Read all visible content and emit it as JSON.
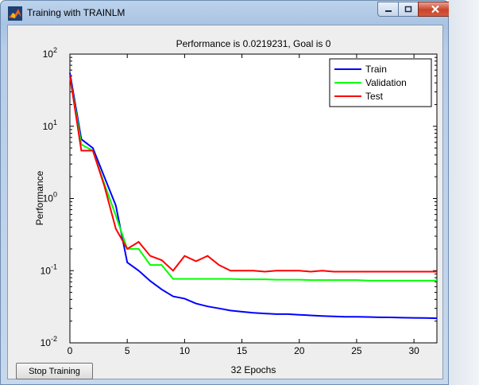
{
  "window": {
    "title": "Training with TRAINLM",
    "buttons": [
      "minimize",
      "maximize",
      "close"
    ],
    "icon": "matlab-icon"
  },
  "controls": {
    "stop_label": "Stop Training"
  },
  "colors": {
    "train": "#0000ff",
    "validation": "#00ff00",
    "test": "#ff0000"
  },
  "chart_data": {
    "type": "line",
    "title": "Performance is 0.0219231, Goal is 0",
    "xlabel": "32 Epochs",
    "ylabel": "Performance",
    "xlim": [
      0,
      32
    ],
    "ylim": [
      0.01,
      100
    ],
    "yscale": "log",
    "xticks": [
      0,
      5,
      10,
      15,
      20,
      25,
      30
    ],
    "yticks": [
      {
        "value": 0.01,
        "base": "10",
        "exp": "-2"
      },
      {
        "value": 0.1,
        "base": "10",
        "exp": "-1"
      },
      {
        "value": 1,
        "base": "10",
        "exp": "0"
      },
      {
        "value": 10,
        "base": "10",
        "exp": "1"
      },
      {
        "value": 100,
        "base": "10",
        "exp": "2"
      }
    ],
    "legend": "top-right",
    "grid": false,
    "series": [
      {
        "name": "Train",
        "color": "#0000ff",
        "x": [
          0,
          1,
          2,
          3,
          4,
          5,
          6,
          7,
          8,
          9,
          10,
          11,
          12,
          13,
          14,
          15,
          16,
          17,
          18,
          19,
          20,
          21,
          22,
          23,
          24,
          25,
          26,
          27,
          28,
          29,
          30,
          31,
          32
        ],
        "y": [
          55,
          6.6,
          5,
          2,
          0.8,
          0.13,
          0.1,
          0.072,
          0.055,
          0.044,
          0.041,
          0.035,
          0.032,
          0.03,
          0.028,
          0.027,
          0.026,
          0.0255,
          0.025,
          0.025,
          0.0245,
          0.024,
          0.0235,
          0.0232,
          0.023,
          0.023,
          0.0228,
          0.0226,
          0.0225,
          0.0223,
          0.0222,
          0.0221,
          0.0219
        ]
      },
      {
        "name": "Validation",
        "color": "#00ff00",
        "x": [
          0,
          1,
          2,
          3,
          4,
          5,
          6,
          7,
          8,
          9,
          10,
          11,
          12,
          13,
          14,
          15,
          16,
          17,
          18,
          19,
          20,
          21,
          22,
          23,
          24,
          25,
          26,
          27,
          28,
          29,
          30,
          31,
          32
        ],
        "y": [
          50,
          5.6,
          4.6,
          1.6,
          0.58,
          0.2,
          0.2,
          0.12,
          0.12,
          0.077,
          0.077,
          0.077,
          0.077,
          0.077,
          0.077,
          0.076,
          0.076,
          0.076,
          0.075,
          0.075,
          0.075,
          0.074,
          0.074,
          0.074,
          0.074,
          0.074,
          0.073,
          0.073,
          0.073,
          0.073,
          0.073,
          0.073,
          0.073
        ]
      },
      {
        "name": "Test",
        "color": "#ff0000",
        "x": [
          0,
          1,
          2,
          3,
          4,
          5,
          6,
          7,
          8,
          9,
          10,
          11,
          12,
          13,
          14,
          15,
          16,
          17,
          18,
          19,
          20,
          21,
          22,
          23,
          24,
          25,
          26,
          27,
          28,
          29,
          30,
          31,
          32
        ],
        "y": [
          50,
          4.6,
          4.6,
          1.5,
          0.38,
          0.2,
          0.25,
          0.16,
          0.14,
          0.1,
          0.16,
          0.135,
          0.16,
          0.12,
          0.1,
          0.1,
          0.1,
          0.097,
          0.1,
          0.1,
          0.1,
          0.097,
          0.1,
          0.097,
          0.097,
          0.097,
          0.097,
          0.097,
          0.097,
          0.097,
          0.097,
          0.097,
          0.097
        ]
      }
    ]
  }
}
